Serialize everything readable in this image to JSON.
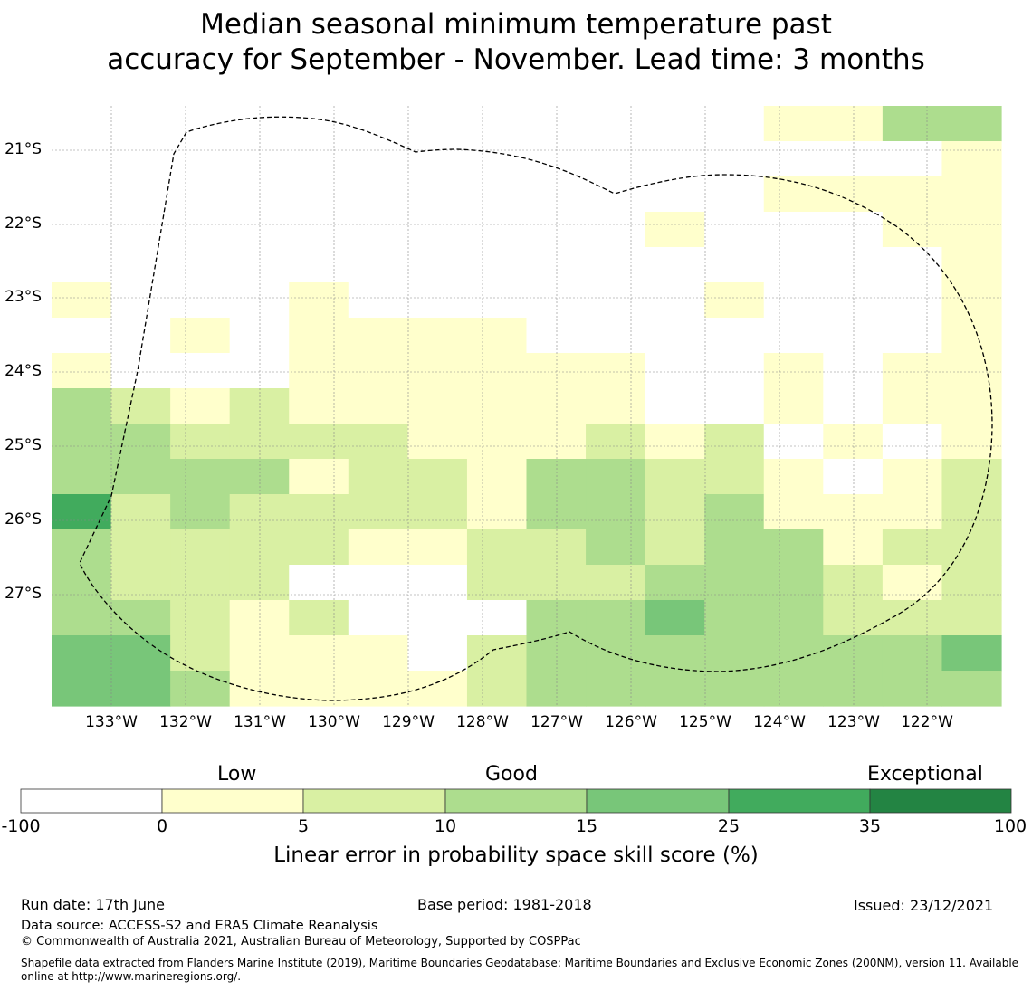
{
  "title_line1": "Median seasonal minimum temperature past",
  "title_line2": "accuracy for September - November. Lead time: 3 months",
  "map": {
    "lon_labels": [
      "133°W",
      "132°W",
      "131°W",
      "130°W",
      "129°W",
      "128°W",
      "127°W",
      "126°W",
      "125°W",
      "124°W",
      "123°W",
      "122°W"
    ],
    "lat_labels": [
      "21°S",
      "22°S",
      "23°S",
      "24°S",
      "25°S",
      "26°S",
      "27°S"
    ],
    "boundary": "Maritime boundary (dashed)",
    "grid_note": "Cell values are LEPS skill score category indices: 0=-100..0, 1=0..5, 2=5..10, 3=10..15, 4=15..25, 5=25..35, 6=35..100",
    "grid": [
      [
        0,
        0,
        0,
        0,
        0,
        0,
        0,
        0,
        0,
        0,
        0,
        0,
        1,
        1,
        3,
        3
      ],
      [
        0,
        0,
        0,
        0,
        0,
        0,
        0,
        0,
        0,
        0,
        0,
        0,
        0,
        0,
        0,
        1
      ],
      [
        0,
        0,
        0,
        0,
        0,
        0,
        0,
        0,
        0,
        0,
        0,
        0,
        1,
        1,
        1,
        1
      ],
      [
        0,
        0,
        0,
        0,
        0,
        0,
        0,
        0,
        0,
        0,
        1,
        0,
        0,
        0,
        1,
        1
      ],
      [
        0,
        0,
        0,
        0,
        0,
        0,
        0,
        0,
        0,
        0,
        0,
        0,
        0,
        0,
        0,
        1
      ],
      [
        1,
        0,
        0,
        0,
        1,
        0,
        0,
        0,
        0,
        0,
        0,
        1,
        0,
        0,
        0,
        1
      ],
      [
        0,
        0,
        1,
        0,
        1,
        1,
        1,
        1,
        0,
        0,
        0,
        0,
        0,
        0,
        0,
        1
      ],
      [
        1,
        0,
        0,
        0,
        1,
        1,
        1,
        1,
        1,
        1,
        0,
        0,
        1,
        0,
        1,
        1
      ],
      [
        3,
        2,
        1,
        2,
        1,
        1,
        1,
        1,
        1,
        1,
        0,
        0,
        1,
        0,
        1,
        1
      ],
      [
        3,
        3,
        2,
        2,
        2,
        2,
        1,
        1,
        1,
        2,
        1,
        2,
        0,
        1,
        0,
        1
      ],
      [
        3,
        3,
        3,
        3,
        1,
        2,
        2,
        1,
        3,
        3,
        2,
        2,
        1,
        0,
        1,
        2
      ],
      [
        5,
        2,
        3,
        2,
        2,
        2,
        2,
        1,
        3,
        3,
        2,
        3,
        1,
        1,
        1,
        2
      ],
      [
        3,
        2,
        2,
        2,
        2,
        1,
        1,
        2,
        2,
        3,
        2,
        3,
        3,
        1,
        2,
        2
      ],
      [
        3,
        2,
        2,
        2,
        0,
        0,
        0,
        2,
        2,
        2,
        3,
        3,
        3,
        2,
        1,
        2
      ],
      [
        3,
        3,
        2,
        1,
        2,
        0,
        0,
        0,
        3,
        3,
        4,
        3,
        3,
        2,
        2,
        2
      ],
      [
        4,
        4,
        2,
        1,
        1,
        1,
        0,
        2,
        3,
        3,
        3,
        3,
        3,
        3,
        3,
        4
      ],
      [
        4,
        4,
        3,
        1,
        1,
        1,
        1,
        2,
        3,
        3,
        3,
        3,
        3,
        3,
        3,
        3
      ]
    ]
  },
  "colorbar": {
    "categories": [
      "Low",
      "Good",
      "Exceptional"
    ],
    "ticks": [
      "-100",
      "0",
      "5",
      "10",
      "15",
      "25",
      "35",
      "100"
    ],
    "colors": [
      "#ffffff",
      "#ffffcc",
      "#d9f0a3",
      "#addd8e",
      "#78c679",
      "#41ab5d",
      "#238443"
    ],
    "label": "Linear error in probability space skill score (%)"
  },
  "footer": {
    "run_date": "Run date: 17th June",
    "base_period": "Base period: 1981-2018",
    "issued": "Issued: 23/12/2021",
    "data_source": "Data source: ACCESS-S2 and ERA5 Climate Reanalysis",
    "copyright": "© Commonwealth of Australia 2021, Australian Bureau of Meteorology, Supported by COSPPac",
    "shapefile_line1": "Shapefile data extracted from Flanders Marine Institute (2019), Maritime Boundaries Geodatabase: Maritime Boundaries and Exclusive Economic Zones (200NM), version 11. Available",
    "shapefile_line2": "online at http://www.marineregions.org/."
  }
}
